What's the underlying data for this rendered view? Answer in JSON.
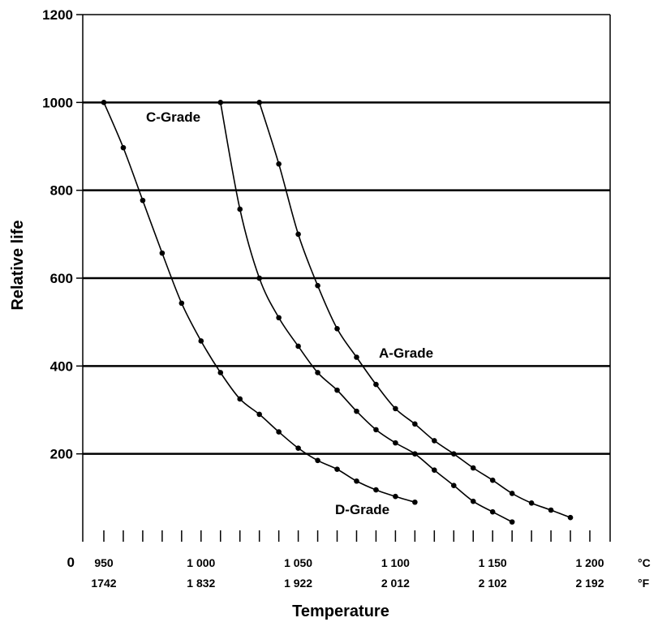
{
  "chart_data": {
    "type": "line",
    "xlabel": "Temperature",
    "ylabel": "Relative life",
    "xlim": [
      950,
      1200
    ],
    "ylim": [
      0,
      1200
    ],
    "y_ticks": [
      "0",
      "200",
      "400",
      "600",
      "800",
      "1000",
      "1200"
    ],
    "x_ticks_c": [
      "950",
      "1 000",
      "1 050",
      "1 100",
      "1 150",
      "1 200"
    ],
    "x_ticks_f": [
      "1742",
      "1 832",
      "1 922",
      "2 012",
      "2 102",
      "2 192"
    ],
    "x_unit_c": "°C",
    "x_unit_f": "°F",
    "grid": "horizontal",
    "series": [
      {
        "name": "D-Grade",
        "x": [
          950,
          960,
          970,
          980,
          990,
          1000,
          1010,
          1020,
          1030,
          1040,
          1050,
          1060,
          1070,
          1080,
          1090,
          1100,
          1110
        ],
        "y": [
          1000,
          897,
          777,
          657,
          543,
          457,
          385,
          325,
          290,
          250,
          213,
          185,
          165,
          138,
          118,
          103,
          90
        ]
      },
      {
        "name": "C-Grade",
        "x": [
          1010,
          1020,
          1030,
          1040,
          1050,
          1060,
          1070,
          1080,
          1090,
          1100,
          1110,
          1120,
          1130,
          1140,
          1150,
          1160
        ],
        "y": [
          1000,
          757,
          600,
          510,
          445,
          385,
          345,
          297,
          255,
          225,
          200,
          163,
          128,
          92,
          68,
          45
        ]
      },
      {
        "name": "A-Grade",
        "x": [
          1030,
          1040,
          1050,
          1060,
          1070,
          1080,
          1090,
          1100,
          1110,
          1120,
          1130,
          1140,
          1150,
          1160,
          1170,
          1180,
          1190
        ],
        "y": [
          1000,
          860,
          700,
          583,
          485,
          420,
          358,
          303,
          268,
          230,
          200,
          168,
          140,
          110,
          88,
          72,
          55
        ]
      }
    ]
  }
}
